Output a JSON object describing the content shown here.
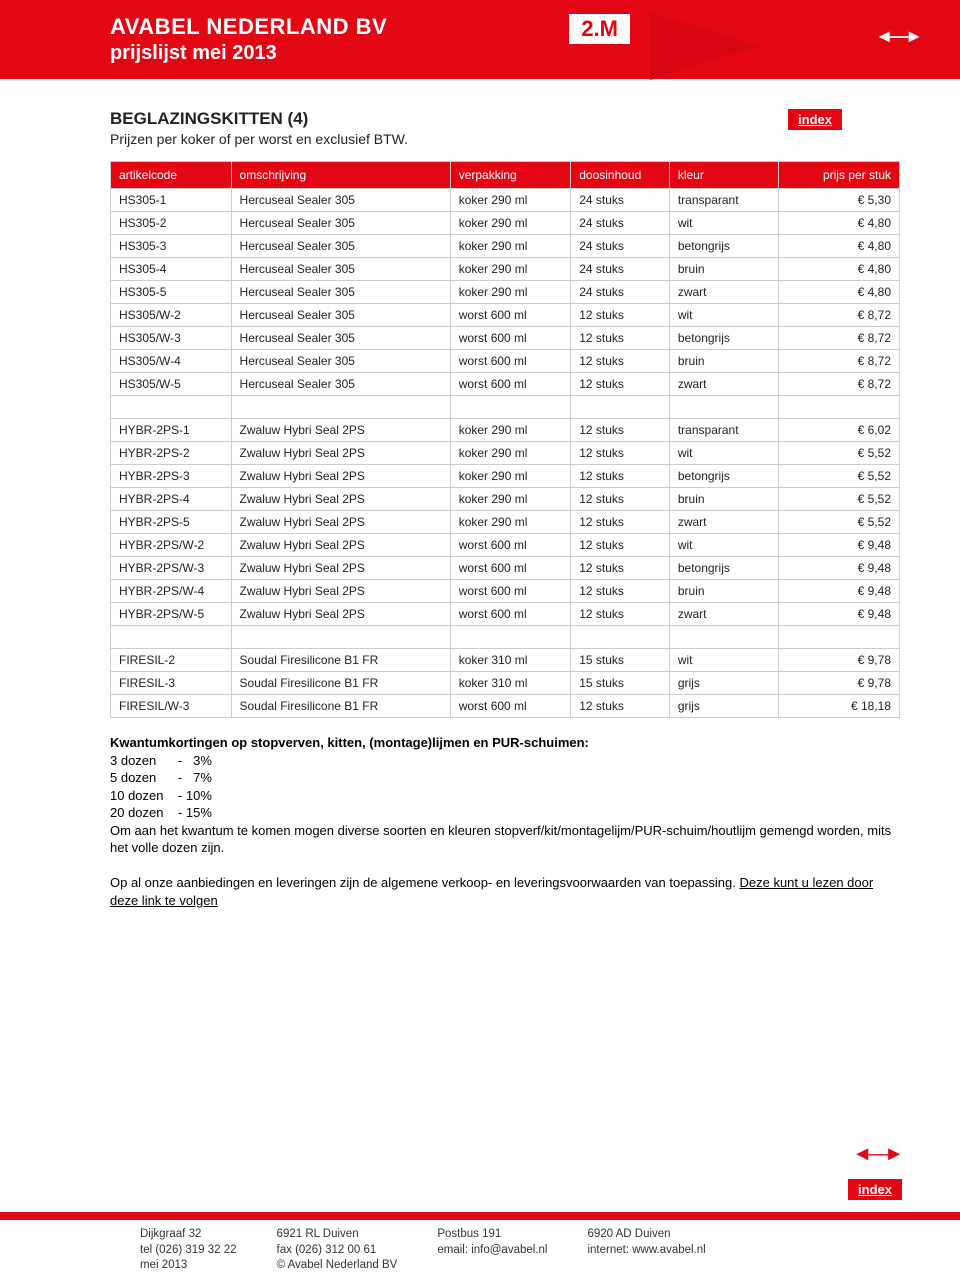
{
  "header": {
    "line1": "AVABEL NEDERLAND BV",
    "line2": "prijslijst mei 2013",
    "pagenum": "2.M",
    "index": "index",
    "arrows": "◄—►"
  },
  "section": {
    "title": "BEGLAZINGSKITTEN (4)",
    "subtitle": "Prijzen per koker of per worst en exclusief BTW."
  },
  "table": {
    "headers": [
      "artikelcode",
      "omschrijving",
      "verpakking",
      "doosinhoud",
      "kleur",
      "prijs per stuk"
    ],
    "col_widths": [
      "110px",
      "200px",
      "110px",
      "90px",
      "100px",
      "110px"
    ],
    "rows": [
      {
        "c": [
          "HS305-1",
          "Hercuseal Sealer 305",
          "koker 290 ml",
          "24 stuks",
          "transparant",
          "€ 5,30"
        ]
      },
      {
        "c": [
          "HS305-2",
          "Hercuseal Sealer 305",
          "koker 290 ml",
          "24 stuks",
          "wit",
          "€ 4,80"
        ]
      },
      {
        "c": [
          "HS305-3",
          "Hercuseal Sealer 305",
          "koker 290 ml",
          "24 stuks",
          "betongrijs",
          "€ 4,80"
        ]
      },
      {
        "c": [
          "HS305-4",
          "Hercuseal Sealer 305",
          "koker 290 ml",
          "24 stuks",
          "bruin",
          "€ 4,80"
        ]
      },
      {
        "c": [
          "HS305-5",
          "Hercuseal Sealer 305",
          "koker 290 ml",
          "24 stuks",
          "zwart",
          "€ 4,80"
        ]
      },
      {
        "c": [
          "HS305/W-2",
          "Hercuseal Sealer 305",
          "worst 600 ml",
          "12 stuks",
          "wit",
          "€ 8,72"
        ]
      },
      {
        "c": [
          "HS305/W-3",
          "Hercuseal Sealer 305",
          "worst 600 ml",
          "12 stuks",
          "betongrijs",
          "€ 8,72"
        ]
      },
      {
        "c": [
          "HS305/W-4",
          "Hercuseal Sealer 305",
          "worst 600 ml",
          "12 stuks",
          "bruin",
          "€ 8,72"
        ]
      },
      {
        "c": [
          "HS305/W-5",
          "Hercuseal Sealer 305",
          "worst 600 ml",
          "12 stuks",
          "zwart",
          "€ 8,72"
        ]
      },
      {
        "blank": true
      },
      {
        "c": [
          "HYBR-2PS-1",
          "Zwaluw Hybri Seal 2PS",
          "koker 290 ml",
          "12 stuks",
          "transparant",
          "€ 6,02"
        ]
      },
      {
        "c": [
          "HYBR-2PS-2",
          "Zwaluw Hybri Seal 2PS",
          "koker 290 ml",
          "12 stuks",
          "wit",
          "€ 5,52"
        ]
      },
      {
        "c": [
          "HYBR-2PS-3",
          "Zwaluw Hybri Seal 2PS",
          "koker 290 ml",
          "12 stuks",
          "betongrijs",
          "€ 5,52"
        ]
      },
      {
        "c": [
          "HYBR-2PS-4",
          "Zwaluw Hybri Seal 2PS",
          "koker 290 ml",
          "12 stuks",
          "bruin",
          "€ 5,52"
        ]
      },
      {
        "c": [
          "HYBR-2PS-5",
          "Zwaluw Hybri Seal 2PS",
          "koker 290 ml",
          "12 stuks",
          "zwart",
          "€ 5,52"
        ]
      },
      {
        "c": [
          "HYBR-2PS/W-2",
          "Zwaluw Hybri Seal 2PS",
          "worst 600 ml",
          "12 stuks",
          "wit",
          "€ 9,48"
        ]
      },
      {
        "c": [
          "HYBR-2PS/W-3",
          "Zwaluw Hybri Seal 2PS",
          "worst 600 ml",
          "12 stuks",
          "betongrijs",
          "€ 9,48"
        ]
      },
      {
        "c": [
          "HYBR-2PS/W-4",
          "Zwaluw Hybri Seal 2PS",
          "worst 600 ml",
          "12 stuks",
          "bruin",
          "€ 9,48"
        ]
      },
      {
        "c": [
          "HYBR-2PS/W-5",
          "Zwaluw Hybri Seal 2PS",
          "worst 600 ml",
          "12 stuks",
          "zwart",
          "€ 9,48"
        ]
      },
      {
        "blank": true
      },
      {
        "c": [
          "FIRESIL-2",
          "Soudal Firesilicone B1 FR",
          "koker 310 ml",
          "15 stuks",
          "wit",
          "€ 9,78"
        ]
      },
      {
        "c": [
          "FIRESIL-3",
          "Soudal Firesilicone B1 FR",
          "koker 310 ml",
          "15 stuks",
          "grijs",
          "€ 9,78"
        ]
      },
      {
        "c": [
          "FIRESIL/W-3",
          "Soudal Firesilicone B1 FR",
          "worst 600 ml",
          "12 stuks",
          "grijs",
          "€ 18,18"
        ]
      }
    ]
  },
  "notes": {
    "heading": "Kwantumkortingen op stopverven, kitten, (montage)lijmen en PUR-schuimen:",
    "lines": [
      "3 dozen      -   3%",
      "5 dozen      -   7%",
      "10 dozen    - 10%",
      "20 dozen    - 15%"
    ],
    "para1": "Om aan het kwantum te komen mogen diverse soorten en kleuren stopverf/kit/montagelijm/PUR-schuim/houtlijm gemengd worden, mits het volle dozen zijn.",
    "para2a": "Op al onze aanbiedingen en leveringen zijn de algemene verkoop- en leveringsvoorwaarden van toepassing. ",
    "para2b": "Deze kunt u lezen door deze link te volgen"
  },
  "footer": {
    "c1": [
      "Dijkgraaf 32",
      "tel (026) 319 32 22",
      "mei 2013"
    ],
    "c2": [
      "6921 RL  Duiven",
      "fax (026) 312 00 61",
      "© Avabel Nederland BV"
    ],
    "c3": [
      "Postbus 191",
      "email: info@avabel.nl"
    ],
    "c4": [
      "6920 AD  Duiven",
      "internet: www.avabel.nl"
    ]
  }
}
